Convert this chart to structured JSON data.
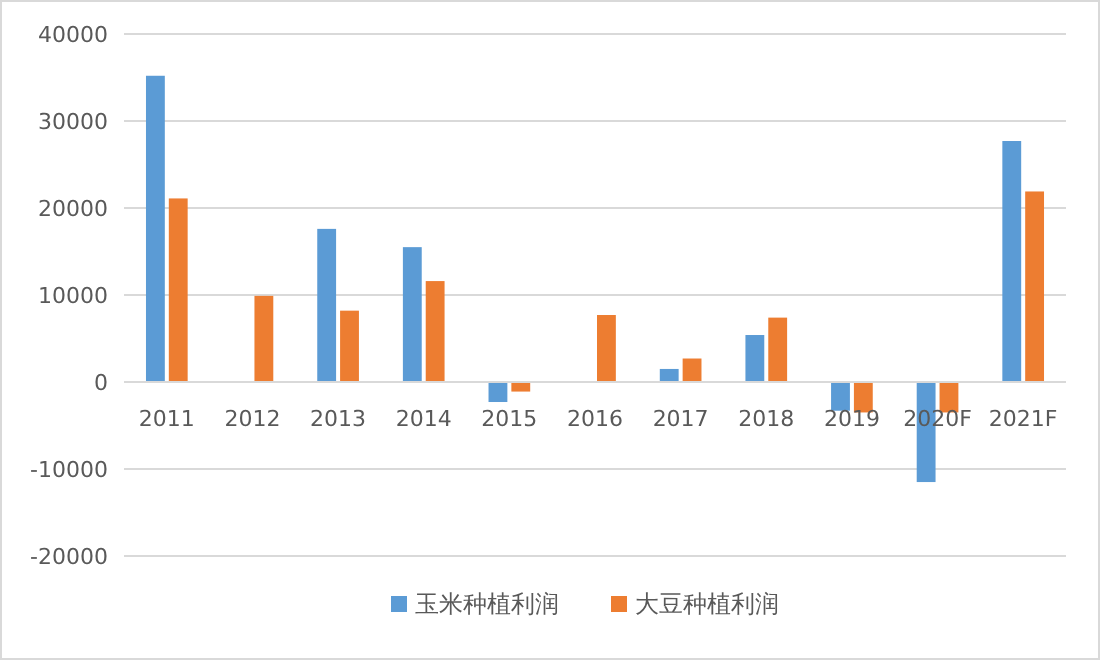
{
  "chart_data": {
    "type": "bar",
    "categories": [
      "2011",
      "2012",
      "2013",
      "2014",
      "2015",
      "2016",
      "2017",
      "2018",
      "2019",
      "2020F",
      "2021F"
    ],
    "series": [
      {
        "name": "玉米种植利润",
        "color": "#5b9bd5",
        "values": [
          35200,
          0,
          17600,
          15500,
          -2300,
          0,
          1500,
          5400,
          -3300,
          -11500,
          27700
        ]
      },
      {
        "name": "大豆种植利润",
        "color": "#ed7d31",
        "values": [
          21100,
          9900,
          8200,
          11600,
          -1100,
          7700,
          2700,
          7400,
          -3500,
          -3500,
          21900
        ]
      }
    ],
    "ylim": [
      -20000,
      40000
    ],
    "yticks": [
      -20000,
      -10000,
      0,
      10000,
      20000,
      30000,
      40000
    ],
    "grid": "y",
    "legend": "bottom"
  }
}
